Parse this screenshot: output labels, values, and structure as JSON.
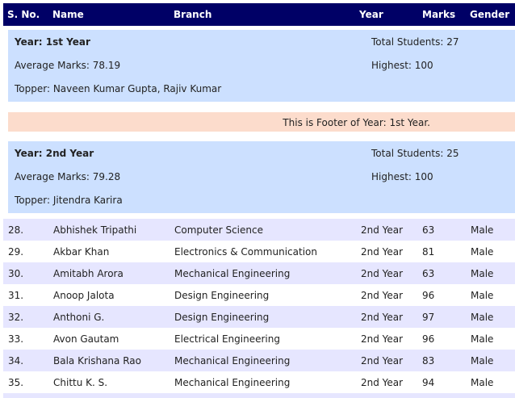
{
  "header": {
    "sno": "S. No.",
    "name": "Name",
    "branch": "Branch",
    "year": "Year",
    "marks": "Marks",
    "gender": "Gender"
  },
  "group1": {
    "title": "Year: 1st Year",
    "total": "Total Students: 27",
    "average": "Average Marks: 78.19",
    "highest": "Highest: 100",
    "topper": "Topper: Naveen Kumar Gupta, Rajiv Kumar",
    "footer": "This is Footer of Year: 1st Year."
  },
  "group2": {
    "title": "Year: 2nd Year",
    "total": "Total Students: 25",
    "average": "Average Marks: 79.28",
    "highest": "Highest: 100",
    "topper": "Topper: Jitendra Karira"
  },
  "rows": [
    {
      "sno": "28.",
      "name": "Abhishek Tripathi",
      "branch": "Computer Science",
      "year": "2nd Year",
      "marks": "63",
      "gender": "Male"
    },
    {
      "sno": "29.",
      "name": "Akbar Khan",
      "branch": "Electronics & Communication",
      "year": "2nd Year",
      "marks": "81",
      "gender": "Male"
    },
    {
      "sno": "30.",
      "name": "Amitabh Arora",
      "branch": "Mechanical Engineering",
      "year": "2nd Year",
      "marks": "63",
      "gender": "Male"
    },
    {
      "sno": "31.",
      "name": "Anoop Jalota",
      "branch": "Design Engineering",
      "year": "2nd Year",
      "marks": "96",
      "gender": "Male"
    },
    {
      "sno": "32.",
      "name": "Anthoni G.",
      "branch": "Design Engineering",
      "year": "2nd Year",
      "marks": "97",
      "gender": "Male"
    },
    {
      "sno": "33.",
      "name": "Avon Gautam",
      "branch": "Electrical Engineering",
      "year": "2nd Year",
      "marks": "96",
      "gender": "Male"
    },
    {
      "sno": "34.",
      "name": "Bala Krishana Rao",
      "branch": "Mechanical Engineering",
      "year": "2nd Year",
      "marks": "83",
      "gender": "Male"
    },
    {
      "sno": "35.",
      "name": "Chittu K. S.",
      "branch": "Mechanical Engineering",
      "year": "2nd Year",
      "marks": "94",
      "gender": "Male"
    }
  ]
}
